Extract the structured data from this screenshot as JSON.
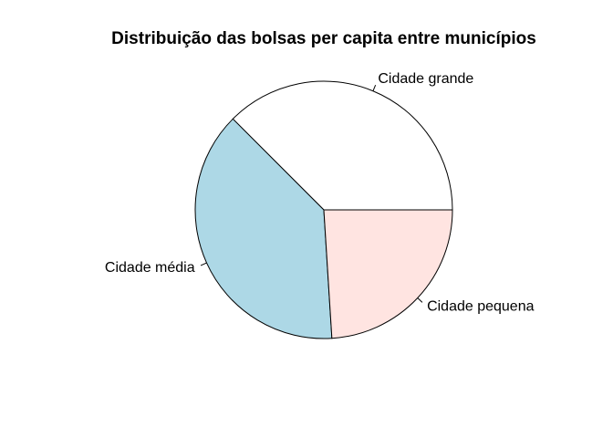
{
  "chart_data": {
    "type": "pie",
    "title": "Distribuição das bolsas per capita entre municípios",
    "slices": [
      {
        "label": "Cidade grande",
        "value": 37.5,
        "color": "#ffffff"
      },
      {
        "label": "Cidade média",
        "value": 38.5,
        "color": "#add8e6"
      },
      {
        "label": "Cidade pequena",
        "value": 24.0,
        "color": "#ffe4e1"
      }
    ],
    "legend": "none"
  }
}
